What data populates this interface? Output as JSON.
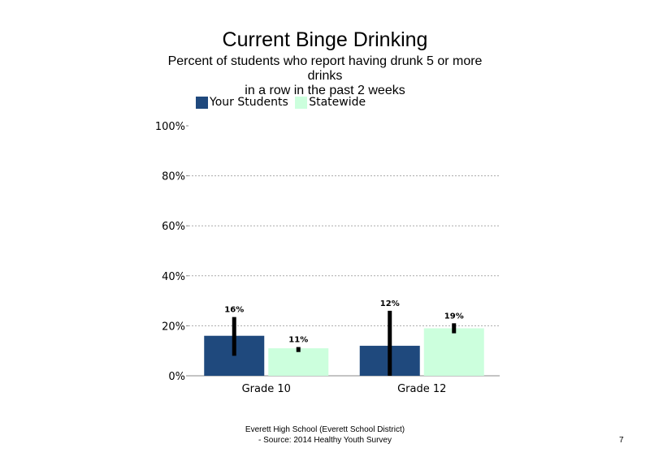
{
  "chart_data": {
    "type": "bar",
    "title": "Current Binge Drinking",
    "subtitle_lines": [
      "Percent of students who report having drunk 5 or more",
      "drinks",
      "in a row in the past 2 weeks"
    ],
    "categories": [
      "Grade 10",
      "Grade 12"
    ],
    "series": [
      {
        "name": "Your Students",
        "color": "#1f497d",
        "values": [
          16,
          12
        ],
        "labels": [
          "16%",
          "12%"
        ],
        "err_low": [
          8,
          0
        ],
        "err_high": [
          23.5,
          26
        ]
      },
      {
        "name": "Statewide",
        "color": "#ccffdd",
        "values": [
          11,
          19
        ],
        "labels": [
          "11%",
          "19%"
        ],
        "err_low": [
          9.5,
          17
        ],
        "err_high": [
          11.5,
          21
        ]
      }
    ],
    "ylim": [
      0,
      100
    ],
    "yticks": [
      "0%",
      "20%",
      "40%",
      "60%",
      "80%",
      "100%"
    ],
    "ytick_values": [
      0,
      20,
      40,
      60,
      80,
      100
    ],
    "grid": true,
    "legend_position": "top-left"
  },
  "footer": {
    "line1": "Everett High School (Everett School District)",
    "line2": "- Source: 2014 Healthy Youth Survey",
    "page_number": "7"
  }
}
